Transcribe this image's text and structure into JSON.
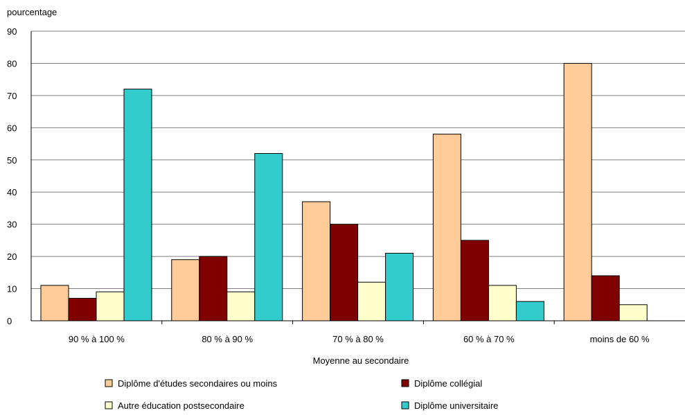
{
  "chart_data": {
    "type": "bar",
    "ylabel": "pourcentage",
    "xlabel": "Moyenne au secondaire",
    "ylim": [
      0,
      90
    ],
    "yticks": [
      0,
      10,
      20,
      30,
      40,
      50,
      60,
      70,
      80,
      90
    ],
    "grid": true,
    "legend_position": "bottom",
    "categories": [
      "90 % à 100 %",
      "80 % à 90 %",
      "70 % à 80 %",
      "60 % à 70 %",
      "moins de 60 %"
    ],
    "series": [
      {
        "name": "Diplôme d'études secondaires ou moins",
        "color": "#ffcc99",
        "values": [
          11,
          19,
          37,
          58,
          80
        ]
      },
      {
        "name": "Diplôme collégial",
        "color": "#800000",
        "values": [
          7,
          20,
          30,
          25,
          14
        ]
      },
      {
        "name": "Autre éducation postsecondaire",
        "color": "#ffffcc",
        "values": [
          9,
          9,
          12,
          11,
          5
        ]
      },
      {
        "name": "Diplôme universitaire",
        "color": "#33cccc",
        "values": [
          72,
          52,
          21,
          6,
          null
        ]
      }
    ]
  }
}
